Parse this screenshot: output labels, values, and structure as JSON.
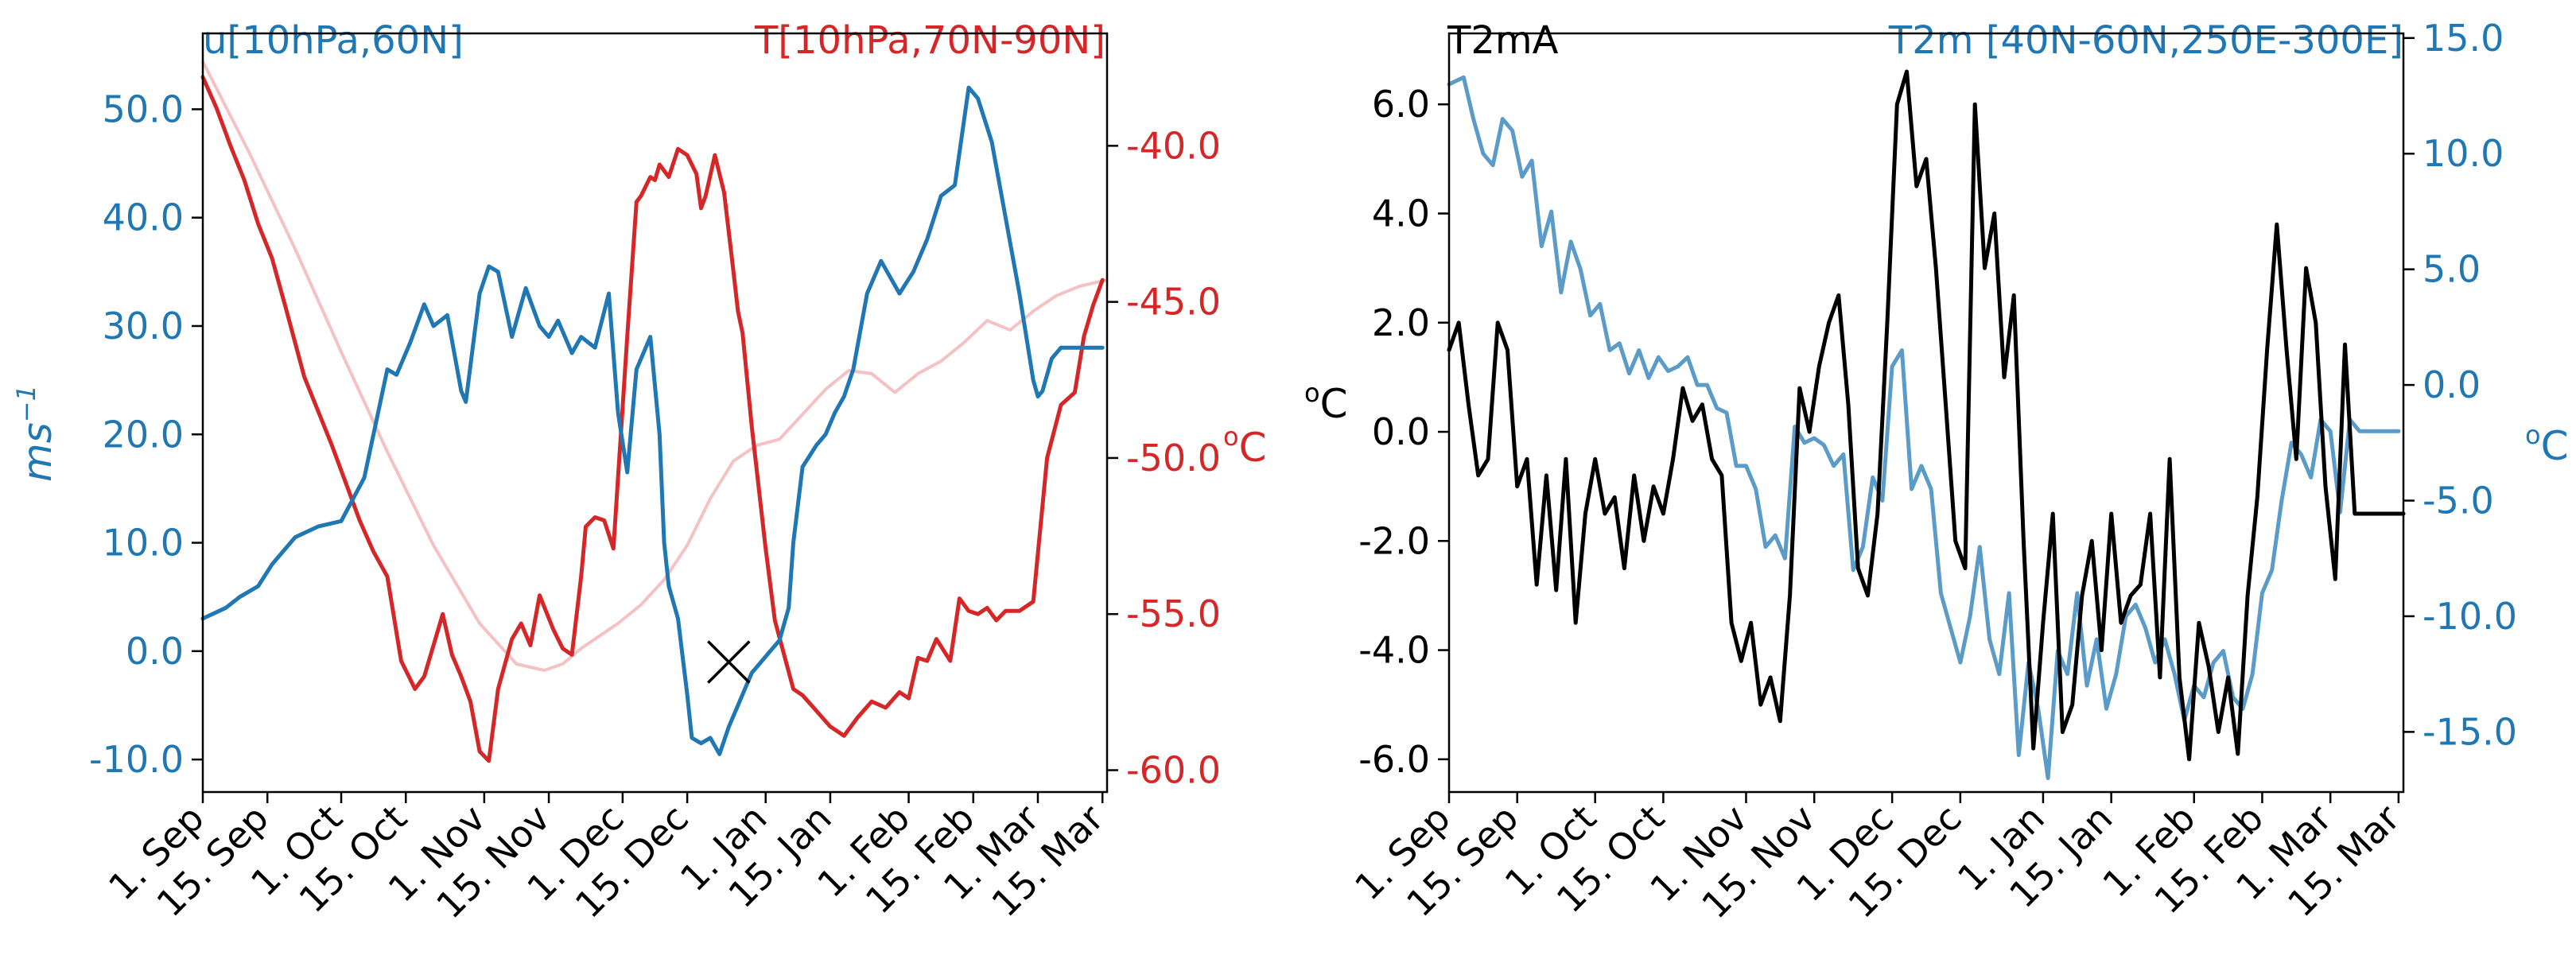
{
  "colors": {
    "u_wind": "#1f77b4",
    "temperature": "#d62728",
    "temperature_clim": "#f4c2c2",
    "t2ma": "#000000",
    "t2m_region": "#5b9bc8",
    "axis": "#000000",
    "marker": "#000000"
  },
  "date_ticks": [
    "1. Sep",
    "15. Sep",
    "1. Oct",
    "15. Oct",
    "1. Nov",
    "15. Nov",
    "1. Dec",
    "15. Dec",
    "1. Jan",
    "15. Jan",
    "1. Feb",
    "15. Feb",
    "1. Mar",
    "15. Mar"
  ],
  "date_tick_days": [
    0,
    14,
    30,
    44,
    61,
    75,
    91,
    105,
    122,
    136,
    153,
    167,
    181,
    195
  ],
  "chart_data": [
    {
      "type": "line",
      "panel": "left",
      "title_left": "u[10hPa,60N]",
      "title_right": "T[10hPa,70N-90N]",
      "xlabel": "",
      "xlim": [
        0,
        196
      ],
      "y_left": {
        "label": "ms",
        "label_sup": "−1",
        "lim": [
          -13,
          57
        ],
        "ticks": [
          -10,
          0,
          10,
          20,
          30,
          40,
          50
        ],
        "tick_labels": [
          "-10.0",
          "0.0",
          "10.0",
          "20.0",
          "30.0",
          "40.0",
          "50.0"
        ]
      },
      "y_right": {
        "label_sup": "o",
        "label": "C",
        "lim": [
          -60.7,
          -36.4
        ],
        "ticks": [
          -60,
          -55,
          -50,
          -45,
          -40
        ],
        "tick_labels": [
          "-60.0",
          "-55.0",
          "-50.0",
          "-45.0",
          "-40.0"
        ]
      },
      "marker": {
        "symbol": "x",
        "day": 114,
        "value": -1,
        "axis": "left"
      },
      "series": [
        {
          "name": "u[10hPa,60N]",
          "axis": "left",
          "color_key": "u_wind",
          "days": [
            0,
            5,
            8,
            12,
            15,
            20,
            25,
            30,
            35,
            37,
            40,
            42,
            45,
            48,
            50,
            53,
            56,
            57,
            60,
            62,
            64,
            67,
            70,
            73,
            75,
            77,
            80,
            82,
            85,
            88,
            90,
            92,
            94,
            97,
            99,
            100,
            101,
            103,
            105,
            106,
            108,
            110,
            112,
            114,
            116,
            118,
            119,
            121,
            123,
            125,
            127,
            128,
            130,
            133,
            135,
            137,
            139,
            141,
            144,
            147,
            151,
            154,
            157,
            160,
            163,
            166,
            168,
            171,
            174,
            177,
            180,
            181,
            182,
            184,
            186,
            188,
            190,
            192,
            193,
            195
          ],
          "values": [
            3,
            4,
            5,
            6,
            8,
            10.5,
            11.5,
            12,
            16,
            20,
            26,
            25.5,
            28.5,
            32,
            30,
            31,
            24,
            23,
            33,
            35.5,
            35,
            29,
            33.5,
            30,
            29,
            30.5,
            27.5,
            29,
            28,
            33,
            22,
            16.5,
            26,
            29,
            20,
            10,
            6,
            3,
            -4,
            -8,
            -8.5,
            -8,
            -9.5,
            -7,
            -5,
            -3,
            -2,
            -1,
            0,
            1,
            4,
            10,
            17,
            19,
            20,
            22,
            23.5,
            26,
            33,
            36,
            33,
            35,
            38,
            42,
            43,
            52,
            51,
            47,
            40,
            33,
            25,
            23.5,
            24,
            27,
            28,
            28,
            28,
            28,
            28,
            28
          ]
        },
        {
          "name": "T[10hPa,70N-90N]",
          "axis": "right",
          "color_key": "temperature",
          "days": [
            0,
            3,
            6,
            9,
            12,
            15,
            18,
            20,
            22,
            25,
            28,
            31,
            34,
            37,
            40,
            43,
            46,
            48,
            50,
            52,
            54,
            56,
            58,
            60,
            62,
            64,
            67,
            69,
            71,
            73,
            76,
            78,
            80,
            82,
            83,
            85,
            87,
            89,
            92,
            94,
            95,
            97,
            98,
            99,
            101,
            103,
            105,
            107,
            108,
            109,
            111,
            113,
            115,
            116,
            117,
            118,
            119,
            120,
            122,
            124,
            126,
            128,
            130,
            133,
            136,
            139,
            142,
            145,
            148,
            151,
            153,
            155,
            157,
            159,
            162,
            164,
            166,
            168,
            170,
            172,
            174,
            177,
            180,
            183,
            186,
            189,
            191,
            193,
            195
          ],
          "values": [
            -37.8,
            -38.8,
            -40,
            -41.1,
            -42.5,
            -43.6,
            -45.2,
            -46.3,
            -47.4,
            -48.5,
            -49.6,
            -50.8,
            -52,
            -53,
            -53.8,
            -56.5,
            -57.4,
            -57,
            -56,
            -55,
            -56.3,
            -57,
            -57.8,
            -59.4,
            -59.7,
            -57.4,
            -55.8,
            -55.3,
            -56,
            -54.4,
            -55.5,
            -56.1,
            -56.3,
            -53.8,
            -52.2,
            -51.9,
            -52,
            -52.9,
            -46.1,
            -41.8,
            -41.6,
            -41,
            -41.1,
            -40.6,
            -41,
            -40.1,
            -40.3,
            -40.9,
            -42,
            -41.6,
            -40.3,
            -41.5,
            -44,
            -45.3,
            -46,
            -47.5,
            -49,
            -50.3,
            -52.9,
            -55.2,
            -56.3,
            -57.4,
            -57.6,
            -58.1,
            -58.6,
            -58.9,
            -58.3,
            -57.8,
            -58,
            -57.5,
            -57.7,
            -56.4,
            -56.5,
            -55.8,
            -56.5,
            -54.5,
            -54.9,
            -55,
            -54.8,
            -55.2,
            -54.9,
            -54.9,
            -54.6,
            -50,
            -48.3,
            -47.9,
            -46.1,
            -45.1,
            -44.3
          ]
        },
        {
          "name": "T[10hPa,70N-90N] climatology",
          "axis": "right",
          "color_key": "temperature_clim",
          "days": [
            0,
            10,
            20,
            30,
            40,
            50,
            60,
            68,
            74,
            78,
            82,
            86,
            90,
            95,
            100,
            105,
            110,
            115,
            120,
            125,
            130,
            135,
            140,
            145,
            150,
            155,
            160,
            165,
            170,
            175,
            180,
            185,
            190,
            196
          ],
          "values": [
            -37.3,
            -40.2,
            -43.3,
            -46.6,
            -49.8,
            -52.8,
            -55.3,
            -56.6,
            -56.8,
            -56.6,
            -56.1,
            -55.7,
            -55.3,
            -54.7,
            -53.9,
            -52.8,
            -51.3,
            -50.1,
            -49.6,
            -49.4,
            -48.6,
            -47.8,
            -47.2,
            -47.3,
            -47.9,
            -47.3,
            -46.9,
            -46.3,
            -45.6,
            -45.9,
            -45.3,
            -44.8,
            -44.5,
            -44.3
          ]
        }
      ]
    },
    {
      "type": "line",
      "panel": "right",
      "title_left": "T2mA",
      "title_right": "T2m [40N-60N,250E-300E]",
      "xlabel": "",
      "xlim": [
        0,
        196
      ],
      "y_left": {
        "label_sup": "o",
        "label": "C",
        "lim": [
          -6.6,
          7.3
        ],
        "ticks": [
          -6,
          -4,
          -2,
          0,
          2,
          4,
          6
        ],
        "tick_labels": [
          "-6.0",
          "-4.0",
          "-2.0",
          "0.0",
          "2.0",
          "4.0",
          "6.0"
        ]
      },
      "y_right": {
        "label_sup": "o",
        "label": "C",
        "lim": [
          -17.6,
          15.2
        ],
        "ticks": [
          -15,
          -10,
          -5,
          0,
          5,
          10,
          15
        ],
        "tick_labels": [
          "-15.0",
          "-10.0",
          "-5.0",
          "0.0",
          "5.0",
          "10.0",
          "15.0"
        ]
      },
      "series": [
        {
          "name": "T2mA",
          "axis": "left",
          "color_key": "t2ma",
          "days": [
            0,
            2,
            4,
            6,
            8,
            10,
            12,
            14,
            16,
            18,
            20,
            22,
            24,
            26,
            28,
            30,
            32,
            34,
            36,
            38,
            40,
            42,
            44,
            46,
            48,
            50,
            52,
            54,
            56,
            58,
            60,
            62,
            64,
            66,
            68,
            70,
            72,
            74,
            76,
            78,
            80,
            82,
            84,
            86,
            88,
            90,
            92,
            94,
            96,
            98,
            100,
            102,
            104,
            106,
            108,
            110,
            112,
            114,
            116,
            118,
            120,
            122,
            124,
            126,
            128,
            130,
            132,
            134,
            136,
            138,
            140,
            142,
            144,
            146,
            148,
            150,
            152,
            154,
            156,
            158,
            160,
            162,
            164,
            166,
            168,
            170,
            172,
            174,
            176,
            178,
            180,
            182,
            184,
            186,
            188,
            190,
            192,
            194,
            196
          ],
          "values": [
            1.5,
            2,
            0.5,
            -0.8,
            -0.5,
            2,
            1.5,
            -1,
            -0.5,
            -2.8,
            -0.8,
            -2.9,
            -0.5,
            -3.5,
            -1.5,
            -0.5,
            -1.5,
            -1.2,
            -2.5,
            -0.8,
            -2,
            -1,
            -1.5,
            -0.5,
            0.8,
            0.2,
            0.5,
            -0.5,
            -0.8,
            -3.5,
            -4.2,
            -3.5,
            -5,
            -4.5,
            -5.3,
            -3,
            0.8,
            0,
            1.2,
            2,
            2.5,
            0.5,
            -2.5,
            -3,
            -1.5,
            2,
            6,
            6.6,
            4.5,
            5,
            3,
            0.5,
            -2,
            -2.5,
            6,
            3,
            4,
            1,
            2.5,
            -2,
            -5.8,
            -3.5,
            -1.5,
            -5.5,
            -5,
            -3,
            -2,
            -4,
            -1.5,
            -3.5,
            -3,
            -2.8,
            -1.5,
            -4.5,
            -0.5,
            -4.5,
            -6,
            -3.5,
            -4.3,
            -5.5,
            -4.5,
            -5.9,
            -3,
            -1.2,
            1.5,
            3.8,
            1.5,
            -0.5,
            3,
            2,
            -1,
            -2.7,
            1.6,
            -1.5,
            -1.5,
            -1.5,
            -1.5,
            -1.5,
            -1.5
          ]
        },
        {
          "name": "T2m [40N-60N,250E-300E]",
          "axis": "right",
          "color_key": "t2m_region",
          "days": [
            0,
            3,
            5,
            7,
            9,
            11,
            13,
            15,
            17,
            19,
            21,
            23,
            25,
            27,
            29,
            31,
            33,
            35,
            37,
            39,
            41,
            43,
            45,
            47,
            49,
            51,
            53,
            55,
            57,
            59,
            61,
            63,
            65,
            67,
            69,
            71,
            73,
            75,
            77,
            79,
            81,
            83,
            85,
            87,
            89,
            91,
            93,
            95,
            97,
            99,
            101,
            103,
            105,
            107,
            109,
            111,
            113,
            115,
            117,
            119,
            121,
            123,
            125,
            127,
            129,
            131,
            133,
            135,
            137,
            139,
            141,
            143,
            145,
            147,
            149,
            151,
            153,
            155,
            157,
            159,
            161,
            163,
            165,
            167,
            169,
            171,
            173,
            175,
            177,
            179,
            181,
            183,
            185,
            187,
            189,
            191,
            193,
            195
          ],
          "values": [
            13,
            13.3,
            11.5,
            10,
            9.5,
            11.5,
            11,
            9,
            9.7,
            6,
            7.5,
            4,
            6.2,
            5,
            3,
            3.5,
            1.5,
            1.8,
            0.5,
            1.5,
            0.3,
            1.2,
            0.6,
            0.8,
            1.2,
            0,
            0,
            -1,
            -1.2,
            -3.5,
            -3.5,
            -4.5,
            -7,
            -6.5,
            -7.5,
            -1.8,
            -2.5,
            -2.3,
            -2.6,
            -3.5,
            -3,
            -8,
            -7,
            -4,
            -5,
            0.8,
            1.5,
            -4.5,
            -3.5,
            -4.5,
            -9,
            -10.5,
            -12,
            -10,
            -7,
            -11,
            -12.5,
            -9,
            -16,
            -12,
            -14,
            -17,
            -11.5,
            -12.5,
            -9,
            -13,
            -11,
            -14,
            -12.5,
            -10,
            -9.5,
            -10.5,
            -12,
            -11,
            -12.5,
            -14.5,
            -13,
            -13.5,
            -12,
            -11.5,
            -13.5,
            -14,
            -12.5,
            -9,
            -8,
            -5,
            -2.5,
            -3,
            -4,
            -1.5,
            -2,
            -5.5,
            -1.5,
            -2,
            -2,
            -2,
            -2,
            -2
          ]
        }
      ]
    }
  ]
}
